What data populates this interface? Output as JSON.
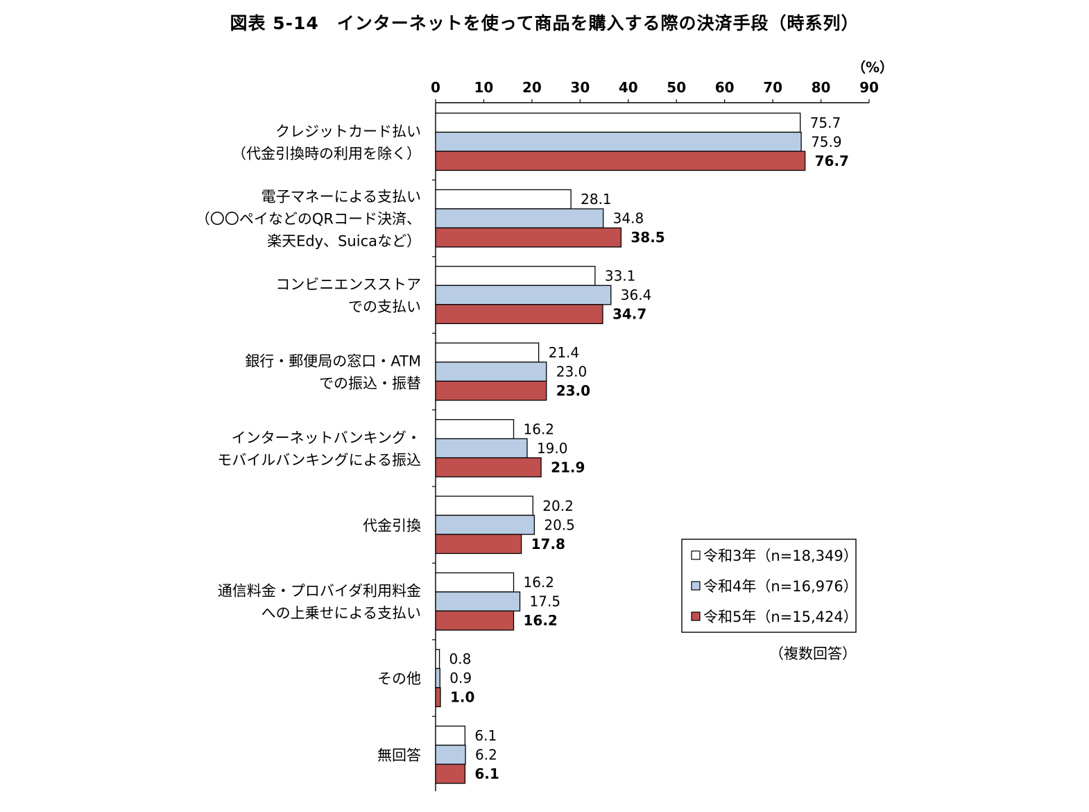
{
  "chart_data": {
    "type": "bar",
    "orientation": "horizontal",
    "title": "図表 5-14　インターネットを使って商品を購入する際の決済手段（時系列）",
    "unit_label": "（%）",
    "note": "（複数回答）",
    "xlim": [
      0,
      90
    ],
    "ticks": [
      0,
      10,
      20,
      30,
      40,
      50,
      60,
      70,
      80,
      90
    ],
    "legend_position": "right",
    "categories": [
      [
        "クレジットカード払い",
        "（代金引換時の利用を除く）"
      ],
      [
        "電子マネーによる支払い",
        "（〇〇ペイなどのQRコード決済、",
        "楽天Edy、Suicaなど）"
      ],
      [
        "コンビニエンスストア",
        "での支払い"
      ],
      [
        "銀行・郵便局の窓口・ATM",
        "での振込・振替"
      ],
      [
        "インターネットバンキング・",
        "モバイルバンキングによる振込"
      ],
      [
        "代金引換"
      ],
      [
        "通信料金・プロバイダ利用料金",
        "への上乗せによる支払い"
      ],
      [
        "その他"
      ],
      [
        "無回答"
      ]
    ],
    "series": [
      {
        "name": "令和3年（n=18,349）",
        "color": "#ffffff",
        "bold_labels": false,
        "values": [
          75.7,
          28.1,
          33.1,
          21.4,
          16.2,
          20.2,
          16.2,
          0.8,
          6.1
        ]
      },
      {
        "name": "令和4年（n=16,976）",
        "color": "#b8cce4",
        "bold_labels": false,
        "values": [
          75.9,
          34.8,
          36.4,
          23.0,
          19.0,
          20.5,
          17.5,
          0.9,
          6.2
        ]
      },
      {
        "name": "令和5年（n=15,424）",
        "color": "#c0504d",
        "bold_labels": true,
        "values": [
          76.7,
          38.5,
          34.7,
          23.0,
          21.9,
          17.8,
          16.2,
          1.0,
          6.1
        ]
      }
    ]
  }
}
